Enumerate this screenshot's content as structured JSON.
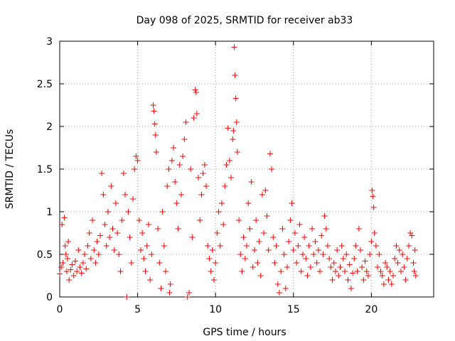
{
  "chart_data": {
    "type": "scatter",
    "title": "Day 098 of 2025, SRMTID for receiver ab33",
    "xlabel": "GPS time / hours",
    "ylabel": "SRMTID / TECUs",
    "xlim": [
      0,
      24
    ],
    "ylim": [
      0,
      3
    ],
    "x_ticks": [
      0,
      5,
      10,
      15,
      20
    ],
    "x_tick_labels": [
      "0",
      "5",
      "10",
      "15",
      "20"
    ],
    "y_ticks": [
      0,
      0.5,
      1,
      1.5,
      2,
      2.5,
      3
    ],
    "y_tick_labels": [
      "0",
      "0.5",
      "1",
      "1.5",
      "2",
      "2.5",
      "3"
    ],
    "grid": true,
    "marker": "plus",
    "color": "#ff0000",
    "series": [
      {
        "name": "SRMTID",
        "points": [
          [
            0.0,
            0.27
          ],
          [
            0.1,
            0.35
          ],
          [
            0.15,
            0.85
          ],
          [
            0.2,
            0.4
          ],
          [
            0.3,
            0.93
          ],
          [
            0.35,
            0.6
          ],
          [
            0.4,
            0.5
          ],
          [
            0.45,
            0.3
          ],
          [
            0.5,
            0.45
          ],
          [
            0.55,
            0.65
          ],
          [
            0.6,
            0.2
          ],
          [
            0.7,
            0.32
          ],
          [
            0.8,
            0.38
          ],
          [
            0.9,
            0.25
          ],
          [
            1.0,
            0.42
          ],
          [
            1.1,
            0.3
          ],
          [
            1.2,
            0.55
          ],
          [
            1.3,
            0.35
          ],
          [
            1.4,
            0.28
          ],
          [
            1.5,
            0.4
          ],
          [
            1.6,
            0.5
          ],
          [
            1.7,
            0.33
          ],
          [
            1.8,
            0.6
          ],
          [
            1.9,
            0.75
          ],
          [
            2.0,
            0.45
          ],
          [
            2.1,
            0.9
          ],
          [
            2.2,
            0.55
          ],
          [
            2.3,
            0.4
          ],
          [
            2.4,
            0.65
          ],
          [
            2.5,
            0.5
          ],
          [
            2.6,
            0.72
          ],
          [
            2.7,
            1.45
          ],
          [
            2.8,
            1.2
          ],
          [
            2.9,
            0.85
          ],
          [
            3.0,
            0.6
          ],
          [
            3.1,
            1.0
          ],
          [
            3.2,
            0.7
          ],
          [
            3.3,
            1.3
          ],
          [
            3.4,
            0.8
          ],
          [
            3.5,
            0.55
          ],
          [
            3.6,
            1.1
          ],
          [
            3.7,
            0.75
          ],
          [
            3.8,
            0.5
          ],
          [
            3.9,
            0.3
          ],
          [
            4.0,
            0.9
          ],
          [
            4.1,
            1.45
          ],
          [
            4.2,
            1.2
          ],
          [
            4.3,
            0.0
          ],
          [
            4.4,
            1.0
          ],
          [
            4.5,
            0.7
          ],
          [
            4.6,
            0.4
          ],
          [
            4.7,
            1.15
          ],
          [
            4.8,
            1.5
          ],
          [
            4.9,
            1.65
          ],
          [
            5.0,
            1.6
          ],
          [
            5.1,
            0.9
          ],
          [
            5.2,
            0.55
          ],
          [
            5.3,
            0.75
          ],
          [
            5.4,
            0.45
          ],
          [
            5.5,
            0.3
          ],
          [
            5.6,
            0.6
          ],
          [
            5.7,
            0.85
          ],
          [
            5.8,
            0.2
          ],
          [
            5.9,
            0.5
          ],
          [
            6.0,
            2.25
          ],
          [
            6.05,
            2.18
          ],
          [
            6.1,
            2.03
          ],
          [
            6.15,
            1.9
          ],
          [
            6.2,
            1.7
          ],
          [
            6.3,
            0.8
          ],
          [
            6.4,
            0.4
          ],
          [
            6.5,
            0.1
          ],
          [
            6.6,
            1.0
          ],
          [
            6.7,
            0.6
          ],
          [
            6.8,
            0.3
          ],
          [
            6.9,
            1.3
          ],
          [
            7.0,
            1.5
          ],
          [
            7.05,
            0.05
          ],
          [
            7.1,
            0.15
          ],
          [
            7.2,
            1.6
          ],
          [
            7.3,
            1.75
          ],
          [
            7.4,
            1.35
          ],
          [
            7.5,
            1.1
          ],
          [
            7.6,
            0.8
          ],
          [
            7.7,
            1.55
          ],
          [
            7.8,
            1.2
          ],
          [
            7.9,
            1.65
          ],
          [
            8.0,
            1.85
          ],
          [
            8.1,
            2.05
          ],
          [
            8.2,
            0.0
          ],
          [
            8.3,
            0.05
          ],
          [
            8.4,
            1.5
          ],
          [
            8.5,
            0.7
          ],
          [
            8.6,
            2.1
          ],
          [
            8.7,
            2.43
          ],
          [
            8.75,
            2.4
          ],
          [
            8.8,
            2.15
          ],
          [
            8.9,
            1.4
          ],
          [
            9.0,
            0.9
          ],
          [
            9.1,
            1.2
          ],
          [
            9.2,
            1.45
          ],
          [
            9.3,
            1.55
          ],
          [
            9.4,
            1.3
          ],
          [
            9.5,
            0.6
          ],
          [
            9.6,
            0.45
          ],
          [
            9.7,
            0.3
          ],
          [
            9.8,
            0.55
          ],
          [
            9.9,
            0.2
          ],
          [
            10.0,
            0.4
          ],
          [
            10.1,
            0.75
          ],
          [
            10.2,
            1.0
          ],
          [
            10.3,
            0.6
          ],
          [
            10.4,
            1.1
          ],
          [
            10.5,
            0.85
          ],
          [
            10.6,
            1.3
          ],
          [
            10.7,
            1.55
          ],
          [
            10.8,
            1.98
          ],
          [
            10.9,
            1.6
          ],
          [
            11.0,
            1.4
          ],
          [
            11.1,
            1.85
          ],
          [
            11.15,
            1.95
          ],
          [
            11.2,
            2.93
          ],
          [
            11.25,
            2.6
          ],
          [
            11.3,
            2.33
          ],
          [
            11.35,
            2.05
          ],
          [
            11.4,
            1.7
          ],
          [
            11.5,
            0.9
          ],
          [
            11.6,
            0.5
          ],
          [
            11.7,
            0.3
          ],
          [
            11.8,
            0.7
          ],
          [
            11.9,
            0.45
          ],
          [
            12.0,
            0.6
          ],
          [
            12.1,
            1.1
          ],
          [
            12.2,
            0.8
          ],
          [
            12.3,
            1.35
          ],
          [
            12.4,
            0.35
          ],
          [
            12.5,
            0.55
          ],
          [
            12.6,
            0.9
          ],
          [
            12.7,
            0.4
          ],
          [
            12.8,
            0.65
          ],
          [
            12.9,
            0.25
          ],
          [
            13.0,
            1.2
          ],
          [
            13.1,
            0.75
          ],
          [
            13.2,
            1.25
          ],
          [
            13.3,
            0.95
          ],
          [
            13.4,
            0.55
          ],
          [
            13.5,
            1.68
          ],
          [
            13.6,
            1.5
          ],
          [
            13.7,
            0.7
          ],
          [
            13.8,
            0.4
          ],
          [
            13.9,
            0.6
          ],
          [
            14.0,
            0.15
          ],
          [
            14.1,
            0.05
          ],
          [
            14.2,
            0.3
          ],
          [
            14.3,
            0.8
          ],
          [
            14.4,
            0.5
          ],
          [
            14.5,
            0.1
          ],
          [
            14.6,
            0.35
          ],
          [
            14.7,
            0.65
          ],
          [
            14.8,
            0.9
          ],
          [
            14.9,
            1.1
          ],
          [
            15.0,
            0.55
          ],
          [
            15.1,
            0.75
          ],
          [
            15.2,
            0.4
          ],
          [
            15.3,
            0.6
          ],
          [
            15.4,
            0.85
          ],
          [
            15.5,
            0.3
          ],
          [
            15.6,
            0.5
          ],
          [
            15.7,
            0.7
          ],
          [
            15.8,
            0.45
          ],
          [
            15.9,
            0.25
          ],
          [
            16.0,
            0.6
          ],
          [
            16.1,
            0.35
          ],
          [
            16.2,
            0.8
          ],
          [
            16.3,
            0.5
          ],
          [
            16.4,
            0.65
          ],
          [
            16.5,
            0.4
          ],
          [
            16.6,
            0.55
          ],
          [
            16.7,
            0.3
          ],
          [
            16.8,
            0.72
          ],
          [
            16.9,
            0.5
          ],
          [
            17.0,
            0.95
          ],
          [
            17.1,
            0.8
          ],
          [
            17.2,
            0.6
          ],
          [
            17.3,
            0.45
          ],
          [
            17.4,
            0.35
          ],
          [
            17.5,
            0.2
          ],
          [
            17.6,
            0.4
          ],
          [
            17.7,
            0.3
          ],
          [
            17.8,
            0.55
          ],
          [
            17.9,
            0.25
          ],
          [
            18.0,
            0.35
          ],
          [
            18.1,
            0.6
          ],
          [
            18.2,
            0.45
          ],
          [
            18.3,
            0.3
          ],
          [
            18.4,
            0.5
          ],
          [
            18.5,
            0.2
          ],
          [
            18.6,
            0.38
          ],
          [
            18.7,
            0.1
          ],
          [
            18.8,
            0.28
          ],
          [
            18.9,
            0.45
          ],
          [
            19.0,
            0.6
          ],
          [
            19.1,
            0.3
          ],
          [
            19.2,
            0.8
          ],
          [
            19.3,
            0.55
          ],
          [
            19.4,
            0.35
          ],
          [
            19.5,
            0.2
          ],
          [
            19.6,
            0.42
          ],
          [
            19.7,
            0.3
          ],
          [
            19.8,
            0.25
          ],
          [
            19.9,
            0.5
          ],
          [
            20.0,
            0.65
          ],
          [
            20.05,
            1.25
          ],
          [
            20.1,
            1.18
          ],
          [
            20.15,
            1.05
          ],
          [
            20.2,
            0.75
          ],
          [
            20.3,
            0.6
          ],
          [
            20.4,
            0.35
          ],
          [
            20.5,
            0.5
          ],
          [
            20.6,
            0.3
          ],
          [
            20.7,
            0.25
          ],
          [
            20.8,
            0.15
          ],
          [
            20.9,
            0.4
          ],
          [
            21.0,
            0.35
          ],
          [
            21.1,
            0.2
          ],
          [
            21.2,
            0.3
          ],
          [
            21.3,
            0.15
          ],
          [
            21.4,
            0.25
          ],
          [
            21.5,
            0.45
          ],
          [
            21.6,
            0.6
          ],
          [
            21.7,
            0.4
          ],
          [
            21.8,
            0.55
          ],
          [
            21.9,
            0.3
          ],
          [
            22.0,
            0.5
          ],
          [
            22.1,
            0.35
          ],
          [
            22.2,
            0.2
          ],
          [
            22.3,
            0.45
          ],
          [
            22.4,
            0.6
          ],
          [
            22.5,
            0.75
          ],
          [
            22.6,
            0.72
          ],
          [
            22.7,
            0.4
          ],
          [
            22.75,
            0.3
          ],
          [
            22.8,
            0.55
          ],
          [
            22.85,
            0.25
          ]
        ]
      }
    ]
  }
}
